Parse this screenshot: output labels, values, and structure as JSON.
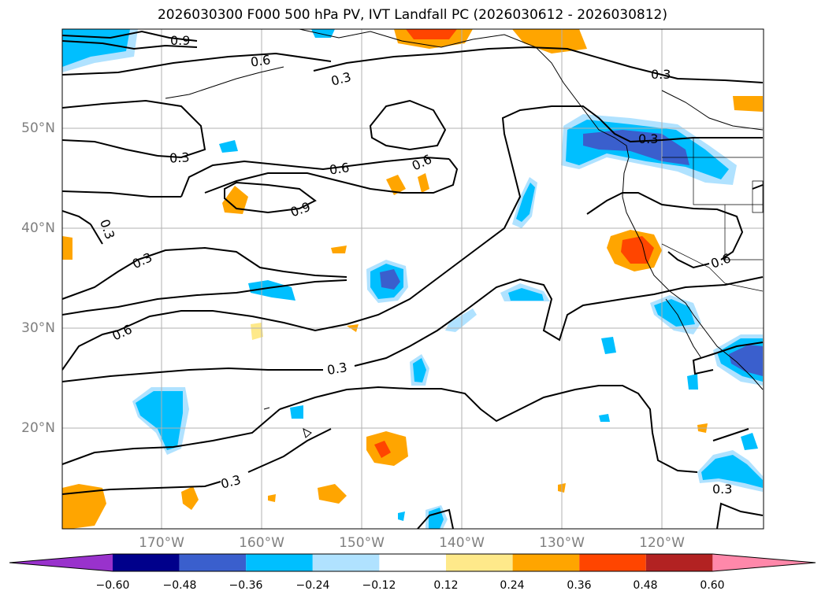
{
  "title": "2026030300 F000 500 hPa PV, IVT Landfall PC (2026030612 - 2026030812)",
  "lon_labels": [
    "170°W",
    "160°W",
    "150°W",
    "140°W",
    "130°W",
    "120°W"
  ],
  "lat_labels": [
    "50°N",
    "40°N",
    "30°N",
    "20°N"
  ],
  "contour_labels": [
    "0.9",
    "0.6",
    "0.3",
    "0.3",
    "0.6",
    "0.3",
    "0.6",
    "0.9",
    "0.3",
    "0.3",
    "0.6",
    "0.3",
    "0.3",
    "0.3",
    "0.3",
    "0.6",
    "0.3"
  ],
  "colorbar": {
    "ticks": [
      "−0.60",
      "−0.48",
      "−0.36",
      "−0.24",
      "−0.12",
      "0.12",
      "0.24",
      "0.36",
      "0.48",
      "0.60"
    ],
    "colors": [
      "#9932cc",
      "#00008b",
      "#3a5fcd",
      "#00bfff",
      "#b0e2ff",
      "#ffffff",
      "#fee98a",
      "#ffa500",
      "#ff4500",
      "#b22222",
      "#ff88aa"
    ]
  }
}
